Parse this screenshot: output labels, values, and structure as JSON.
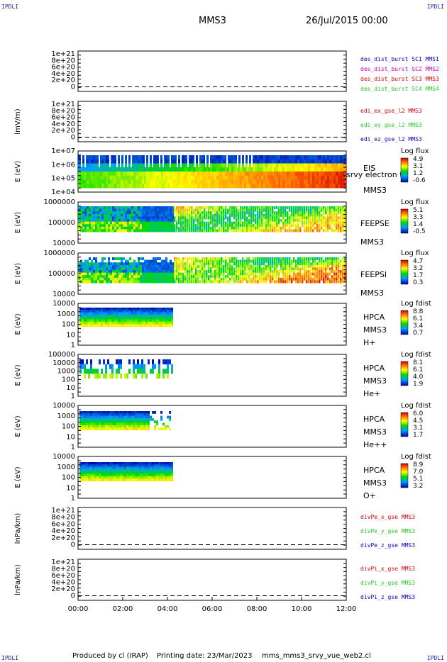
{
  "corners": [
    "IPDLI",
    "IPDLI",
    "IPDLI",
    "IPDLI"
  ],
  "header": {
    "spacecraft": "MMS3",
    "datetime": "26/Jul/2015 00:00"
  },
  "footer": {
    "produced_by": "Produced by cl (IRAP)",
    "printing_date": "Printing date: 23/Mar/2023",
    "script": "mms_mms3_srvy_vue_web2.cl"
  },
  "colors": {
    "series_red": "#dd0000",
    "series_green": "#22cc22",
    "series_blue": "#0000cc",
    "series_magenta": "#cc00cc"
  },
  "chart_data": {
    "type": "line",
    "x_ticks": [
      "00:00",
      "02:00",
      "04:00",
      "06:00",
      "08:00",
      "10:00",
      "12:00"
    ],
    "xlim": [
      "00:00",
      "12:00"
    ],
    "panels": [
      {
        "type": "line",
        "ylabel": "",
        "yticks": [
          "1e+21",
          "8e+20",
          "6e+20",
          "4e+20",
          "2e+20",
          "0"
        ],
        "legend": [
          {
            "text": "des_dist_burst SC1 MMS1",
            "color": "#0000cc"
          },
          {
            "text": "des_dist_burst SC2 MMS2",
            "color": "#cc00cc"
          },
          {
            "text": "des_dist_burst SC3 MMS3",
            "color": "#dd0000"
          },
          {
            "text": "des_dist_burst SC4 MMS4",
            "color": "#22cc22"
          }
        ]
      },
      {
        "type": "line",
        "ylabel": "lmV/m)",
        "yticks": [
          "1e+21",
          "8e+20",
          "6e+20",
          "4e+20",
          "2e+20",
          "0"
        ],
        "legend": [
          {
            "text": "edi_ex_gse_l2 MMS3",
            "color": "#dd0000"
          },
          {
            "text": "edi_ey_gse_l2 MMS3",
            "color": "#22cc22"
          },
          {
            "text": "edi_ez_gse_l2 MMS3",
            "color": "#0000cc"
          }
        ]
      },
      {
        "type": "heatmap",
        "ylabel": "E (eV)",
        "yticks": [
          "1e+07",
          "1e+06",
          "1e+05",
          "1e+04"
        ],
        "labels": [
          "EIS",
          "srvy electron to",
          "MMS3"
        ],
        "colorbar_title": "Log flux",
        "colorbar_ticks": [
          "4.9",
          "3.1",
          "1.2",
          "-0.6"
        ]
      },
      {
        "type": "heatmap",
        "ylabel": "E (eV)",
        "yticks": [
          "1000000",
          "100000",
          "10000"
        ],
        "labels": [
          "FEEPSE",
          "MMS3"
        ],
        "colorbar_title": "Log flux",
        "colorbar_ticks": [
          "5.1",
          "3.3",
          "1.4",
          "-0.5"
        ]
      },
      {
        "type": "heatmap",
        "ylabel": "E (eV)",
        "yticks": [
          "1000000",
          "100000",
          "10000"
        ],
        "labels": [
          "FEEPSI",
          "MMS3"
        ],
        "colorbar_title": "Log flux",
        "colorbar_ticks": [
          "4.7",
          "3.2",
          "1.7",
          "0.3"
        ]
      },
      {
        "type": "heatmap",
        "ylabel": "E (eV)",
        "yticks": [
          "10000",
          "1000",
          "100",
          "10",
          "1"
        ],
        "labels": [
          "HPCA",
          "MMS3",
          "H+"
        ],
        "colorbar_title": "Log fdist",
        "colorbar_ticks": [
          "8.8",
          "6.1",
          "3.4",
          "0.7"
        ]
      },
      {
        "type": "heatmap",
        "ylabel": "E (eV)",
        "yticks": [
          "100000",
          "10000",
          "1000",
          "100",
          "10",
          "1"
        ],
        "labels": [
          "HPCA",
          "MMS3",
          "He+"
        ],
        "colorbar_title": "Log fdist",
        "colorbar_ticks": [
          "8.1",
          "6.1",
          "4.0",
          "1.9"
        ]
      },
      {
        "type": "heatmap",
        "ylabel": "E (eV)",
        "yticks": [
          "10000",
          "1000",
          "100",
          "10",
          "1"
        ],
        "labels": [
          "HPCA",
          "MMS3",
          "He++"
        ],
        "colorbar_title": "Log fdist",
        "colorbar_ticks": [
          "6.0",
          "4.5",
          "3.1",
          "1.7"
        ]
      },
      {
        "type": "heatmap",
        "ylabel": "E (eV)",
        "yticks": [
          "10000",
          "1000",
          "100",
          "10",
          "1"
        ],
        "labels": [
          "HPCA",
          "MMS3",
          "O+"
        ],
        "colorbar_title": "Log fdist",
        "colorbar_ticks": [
          "8.9",
          "7.0",
          "5.1",
          "3.2"
        ]
      },
      {
        "type": "line",
        "ylabel": "lnPa/km)",
        "yticks": [
          "1e+21",
          "8e+20",
          "6e+20",
          "4e+20",
          "2e+20",
          "0"
        ],
        "legend": [
          {
            "text": "divPe_x_gse MMS3",
            "color": "#dd0000"
          },
          {
            "text": "divPe_y_gse MMS3",
            "color": "#22cc22"
          },
          {
            "text": "divPe_z_gse MMS3",
            "color": "#0000cc"
          }
        ]
      },
      {
        "type": "line",
        "ylabel": "lnPa/km)",
        "yticks": [
          "1e+21",
          "8e+20",
          "6e+20",
          "4e+20",
          "2e+20",
          "0"
        ],
        "legend": [
          {
            "text": "divPi_x_gse MMS3",
            "color": "#dd0000"
          },
          {
            "text": "divPi_y_gse MMS3",
            "color": "#22cc22"
          },
          {
            "text": "divPi_z_gse MMS3",
            "color": "#0000cc"
          }
        ]
      }
    ]
  }
}
